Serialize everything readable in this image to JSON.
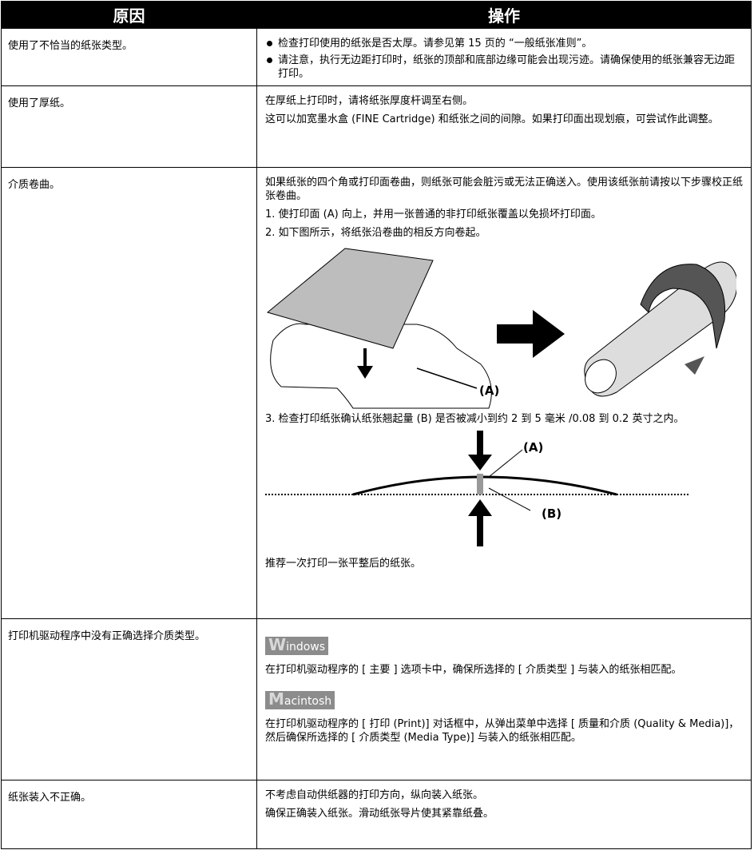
{
  "table": {
    "header": [
      "原因",
      "操作"
    ],
    "rows": [
      {
        "cause": "使用了不恰当的纸张类型。",
        "bullets": [
          "检查打印使用的纸张是否太厚。请参见第 15 页的 “一般纸张准则”。",
          "请注意，执行无边距打印时，纸张的顶部和底部边缘可能会出现污迹。请确保使用的纸张兼容无边距打印。"
        ]
      },
      {
        "cause": "使用了厚纸。",
        "paragraphs": [
          "在厚纸上打印时，请将纸张厚度杆调至右侧。",
          "这可以加宽墨水盒 (FINE Cartridge) 和纸张之间的间隙。如果打印面出现划痕，可尝试作此调整。"
        ]
      },
      {
        "cause": "介质卷曲。",
        "paragraphs": [
          "如果纸张的四个角或打印面卷曲，则纸张可能会脏污或无法正确送入。使用该纸张前请按以下步骤校正纸张卷曲。",
          "1. 使打印面 (A) 向上，并用一张普通的非打印纸张覆盖以免损坏打印面。",
          "2. 如下图所示，将纸张沿卷曲的相反方向卷起。"
        ],
        "figure1_label": "(A)",
        "step3": "3. 检查打印纸张确认纸张翘起量 (B) 是否被减小到约 2 到 5 毫米 /0.08 到 0.2 英寸之内。",
        "figure2_labels": [
          "(A)",
          "(B)"
        ],
        "closing": "推荐一次打印一张平整后的纸张。"
      },
      {
        "cause": "打印机驱动程序中没有正确选择介质类型。",
        "windows_logo": "Windows",
        "windows_text": "在打印机驱动程序的 [ 主要 ] 选项卡中，确保所选择的 [ 介质类型 ] 与装入的纸张相匹配。",
        "mac_logo": "Macintosh",
        "mac_text": "在打印机驱动程序的 [ 打印 (Print)] 对话框中，从弹出菜单中选择 [ 质量和介质 (Quality & Media)]，然后确保所选择的 [ 介质类型 (Media Type)] 与装入的纸张相匹配。"
      },
      {
        "cause": "纸张装入不正确。",
        "paragraphs": [
          "不考虑自动供纸器的打印方向，纵向装入纸张。",
          "确保正确装入纸张。滑动纸张导片使其紧靠纸叠。"
        ]
      }
    ]
  }
}
